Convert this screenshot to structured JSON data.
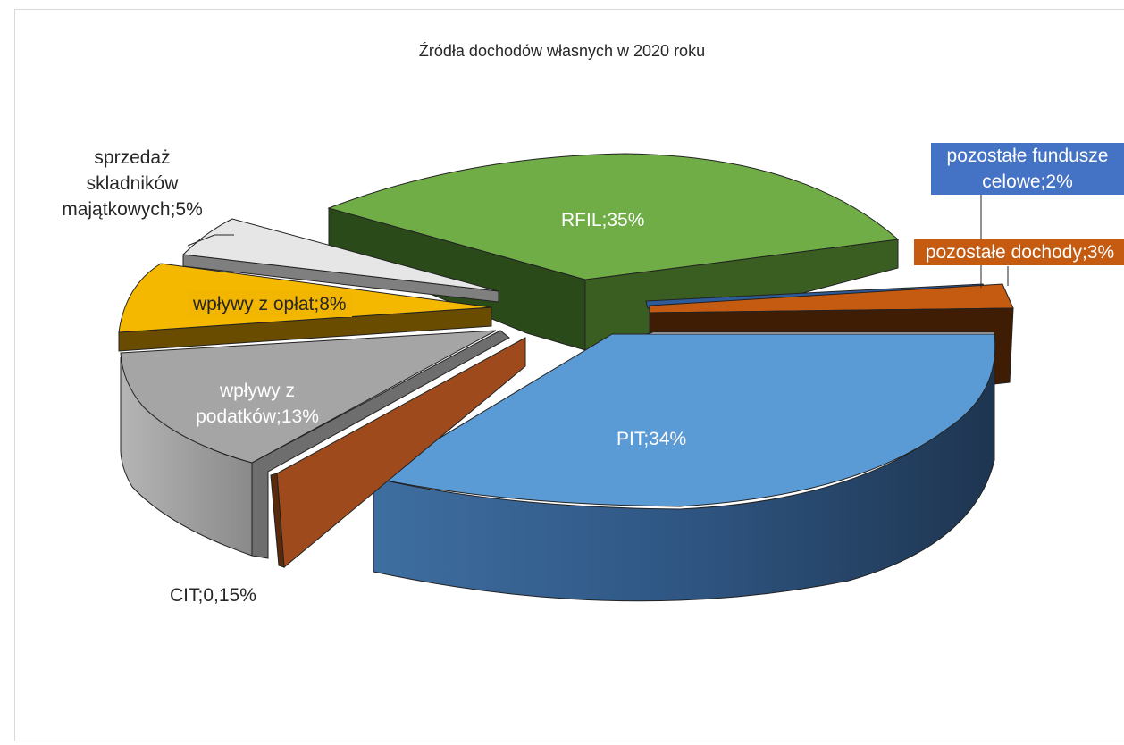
{
  "chart_data": {
    "type": "pie",
    "variant": "3d-exploded",
    "title": "Źródła dochodów własnych w 2020 roku",
    "slices": [
      {
        "name": "RFIL",
        "label": "RFIL;35%",
        "value": 35,
        "color": "#70ad47"
      },
      {
        "name": "pozostałe fundusze celowe",
        "label": "pozostałe fundusze celowe;2%",
        "value": 2,
        "color": "#4472c4"
      },
      {
        "name": "pozostałe dochody",
        "label": "pozostałe dochody;3%",
        "value": 3,
        "color": "#c55a11"
      },
      {
        "name": "PIT",
        "label": "PIT;34%",
        "value": 34,
        "color": "#5b9bd5"
      },
      {
        "name": "CIT",
        "label": "CIT;0,15%",
        "value": 0.15,
        "color": "#9e4a1c"
      },
      {
        "name": "wpływy z podatków",
        "label": "wpływy z podatków;13%",
        "value": 13,
        "color": "#a5a5a5"
      },
      {
        "name": "wpływy z opłat",
        "label": "wpływy z opłat;8%",
        "value": 8,
        "color": "#f5b800"
      },
      {
        "name": "sprzedaż składników majątkowych",
        "label": "sprzedaż skladników majątkowych;5%",
        "value": 5,
        "color": "#e6e6e6"
      }
    ],
    "labels": {
      "rfil": "RFIL;35%",
      "fundusze_1": "pozostałe fundusze",
      "fundusze_2": "celowe;2%",
      "dochody": "pozostałe dochody;3%",
      "pit": "PIT;34%",
      "cit": "CIT;0,15%",
      "podatki_1": "wpływy z",
      "podatki_2": "podatków;13%",
      "oplaty": "wpływy z opłat;8%",
      "sprzedaz_1": "sprzedaż",
      "sprzedaz_2": "skladników",
      "sprzedaz_3": "majątkowych;5%"
    }
  }
}
